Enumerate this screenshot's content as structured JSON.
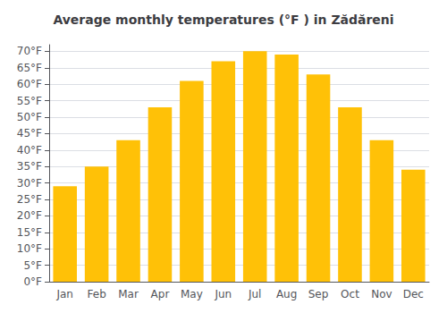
{
  "chart_data": {
    "type": "bar",
    "title": "Average monthly temperatures (°F ) in Zădăreni",
    "categories": [
      "Jan",
      "Feb",
      "Mar",
      "Apr",
      "May",
      "Jun",
      "Jul",
      "Aug",
      "Sep",
      "Oct",
      "Nov",
      "Dec"
    ],
    "values": [
      29,
      35,
      43,
      53,
      61,
      67,
      70,
      69,
      63,
      53,
      43,
      34
    ],
    "color": "#FFC107",
    "ylim": [
      0,
      72
    ],
    "yticks": [
      {
        "value": 0,
        "label": "0°F"
      },
      {
        "value": 5,
        "label": "5°F"
      },
      {
        "value": 10,
        "label": "10°F"
      },
      {
        "value": 15,
        "label": "15°F"
      },
      {
        "value": 20,
        "label": "20°F"
      },
      {
        "value": 25,
        "label": "25°F"
      },
      {
        "value": 30,
        "label": "30°F"
      },
      {
        "value": 35,
        "label": "35°F"
      },
      {
        "value": 40,
        "label": "40°F"
      },
      {
        "value": 45,
        "label": "45°F"
      },
      {
        "value": 50,
        "label": "50°F"
      },
      {
        "value": 55,
        "label": "55°F"
      },
      {
        "value": 60,
        "label": "60°F"
      },
      {
        "value": 65,
        "label": "65°F"
      },
      {
        "value": 70,
        "label": "70°F"
      }
    ],
    "grid": true
  }
}
